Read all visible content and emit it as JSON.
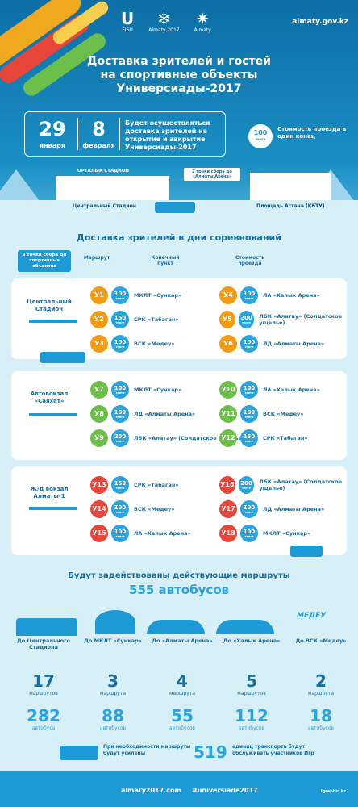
{
  "header": {
    "site": "almaty.gov.kz",
    "logos": [
      {
        "mark": "U",
        "caption": "FISU"
      },
      {
        "mark": "❄",
        "caption": "Almaty 2017"
      },
      {
        "mark": "✷",
        "caption": "Almaty"
      }
    ],
    "title": [
      "Доставка зрителей и гостей",
      "на спортивные объекты",
      "Универсиады-2017"
    ],
    "date1_day": "29",
    "date1_month": "января",
    "date2_day": "8",
    "date2_month": "февраля",
    "date_text": "Будет осуществляться доставка зрителей на открытие и закрытие Универсиады-2017",
    "price": "100",
    "price_unit": "тенге",
    "price_text": "Стоимость проезда в один конец",
    "stadium_sign": "ОРТАЛЫҚ СТАДИОН",
    "gather_sign": "2 точки сбора до «Алматы Арена»",
    "label_left": "Центральный Стадион",
    "label_right": "Площадь Астана (КБТУ)"
  },
  "section2": {
    "title": "Доставка зрителей в дни соревнований",
    "tag": "3 точки сбора до спортивных объектов",
    "col_route": "Маршрут",
    "col_dest": "Конечный пункт",
    "col_price": "Стоимость проезда",
    "currency": "тенге",
    "stops": [
      {
        "name": "Центральный Стадион",
        "color": "#f39c12",
        "left": [
          {
            "r": "У1",
            "p": "100",
            "d": "МКЛТ «Сункар»"
          },
          {
            "r": "У2",
            "p": "150",
            "d": "СРК «Табаган»"
          },
          {
            "r": "У3",
            "p": "100",
            "d": "ВСК «Медеу»"
          }
        ],
        "right": [
          {
            "r": "У4",
            "p": "100",
            "d": "ЛА «Халык Арена»"
          },
          {
            "r": "У5",
            "p": "200",
            "d": "ЛБК «Алатау» (Солдатское ущелье)"
          },
          {
            "r": "У6",
            "p": "100",
            "d": "ЛД «Алматы Арена»"
          }
        ]
      },
      {
        "name": "Автовокзал «Саяхат»",
        "color": "#6cc04a",
        "left": [
          {
            "r": "У7",
            "p": "100",
            "d": "МКЛТ «Сункар»"
          },
          {
            "r": "У8",
            "p": "100",
            "d": "ЛД «Алматы Арена»"
          },
          {
            "r": "У9",
            "p": "200",
            "d": "ЛБК «Алатау» (Солдатское ущелье)"
          }
        ],
        "right": [
          {
            "r": "У10",
            "p": "100",
            "d": "ЛА «Халык Арена»"
          },
          {
            "r": "У11",
            "p": "100",
            "d": "ВСК «Медеу»"
          },
          {
            "r": "У12",
            "p": "150",
            "d": "СРК «Табаган»"
          }
        ]
      },
      {
        "name": "Ж/д вокзал Алматы-1",
        "color": "#e8463a",
        "left": [
          {
            "r": "У13",
            "p": "150",
            "d": "СРК «Табаган»"
          },
          {
            "r": "У14",
            "p": "100",
            "d": "ВСК «Медеу»"
          },
          {
            "r": "У15",
            "p": "100",
            "d": "ЛА «Халык Арена»"
          }
        ],
        "right": [
          {
            "r": "У16",
            "p": "200",
            "d": "ЛБК «Алатау» (Солдатское ущелье)"
          },
          {
            "r": "У17",
            "p": "100",
            "d": "ЛД «Алматы Арена»"
          },
          {
            "r": "У18",
            "p": "100",
            "d": "МКЛТ «Сункар»"
          }
        ]
      }
    ]
  },
  "section3": {
    "title": "Будут задействованы действующие маршруты",
    "buses": "555 автобусов",
    "medeu_logo": "МЕДЕУ",
    "cols": [
      {
        "dest": "До Центрального Стадиона",
        "routes": "17",
        "routes_label": "маршрутов",
        "buses": "282",
        "buses_label": "автобуса"
      },
      {
        "dest": "До МКЛТ «Сункар»",
        "routes": "3",
        "routes_label": "маршрута",
        "buses": "88",
        "buses_label": "автобусов"
      },
      {
        "dest": "До «Алматы Арена»",
        "routes": "4",
        "routes_label": "маршрута",
        "buses": "55",
        "buses_label": "автобусов"
      },
      {
        "dest": "До «Халык Арена»",
        "routes": "5",
        "routes_label": "маршрутов",
        "buses": "112",
        "buses_label": "автобусов"
      },
      {
        "dest": "До ВСК «Медеу»",
        "routes": "2",
        "routes_label": "маршрута",
        "buses": "18",
        "buses_label": "автобусов"
      }
    ],
    "note_left": "При необходимости маршруты будут усилены",
    "big_count": "519",
    "note_right": "единиц транспорта будут обслуживать участников Игр"
  },
  "footer": {
    "site": "almaty2017.com",
    "hashtag": "#universiade2017",
    "credit": "igraphic.kz"
  },
  "colors": {
    "brand": "#1d9ad6",
    "dark": "#1a6d9c"
  }
}
